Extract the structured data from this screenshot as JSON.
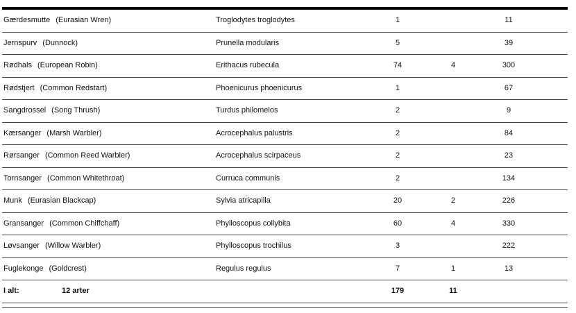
{
  "rows": [
    {
      "name": "Gærdesmutte",
      "english": "(Eurasian Wren)",
      "latin": "Troglodytes troglodytes",
      "n1": "1",
      "n2": "",
      "n3": "11"
    },
    {
      "name": "Jernspurv",
      "english": "(Dunnock)",
      "latin": "Prunella modularis",
      "n1": "5",
      "n2": "",
      "n3": "39"
    },
    {
      "name": "Rødhals",
      "english": "(European Robin)",
      "latin": "Erithacus rubecula",
      "n1": "74",
      "n2": "4",
      "n3": "300"
    },
    {
      "name": "Rødstjert",
      "english": "(Common Redstart)",
      "latin": "Phoenicurus phoenicurus",
      "n1": "1",
      "n2": "",
      "n3": "67"
    },
    {
      "name": "Sangdrossel",
      "english": "(Song Thrush)",
      "latin": "Turdus philomelos",
      "n1": "2",
      "n2": "",
      "n3": "9"
    },
    {
      "name": "Kærsanger",
      "english": "(Marsh Warbler)",
      "latin": "Acrocephalus palustris",
      "n1": "2",
      "n2": "",
      "n3": "84"
    },
    {
      "name": "Rørsanger",
      "english": "(Common Reed Warbler)",
      "latin": "Acrocephalus scirpaceus",
      "n1": "2",
      "n2": "",
      "n3": "23"
    },
    {
      "name": "Tornsanger",
      "english": "(Common Whitethroat)",
      "latin": "Curruca communis",
      "n1": "2",
      "n2": "",
      "n3": "134"
    },
    {
      "name": "Munk",
      "english": "(Eurasian Blackcap)",
      "latin": "Sylvia atricapilla",
      "n1": "20",
      "n2": "2",
      "n3": "226"
    },
    {
      "name": "Gransanger",
      "english": "(Common Chiffchaff)",
      "latin": "Phylloscopus collybita",
      "n1": "60",
      "n2": "4",
      "n3": "330"
    },
    {
      "name": "Løvsanger",
      "english": "(Willow Warbler)",
      "latin": "Phylloscopus trochilus",
      "n1": "3",
      "n2": "",
      "n3": "222"
    },
    {
      "name": "Fuglekonge",
      "english": "(Goldcrest)",
      "latin": "Regulus regulus",
      "n1": "7",
      "n2": "1",
      "n3": "13"
    }
  ],
  "total": {
    "label": "I alt:",
    "species": "12 arter",
    "n1": "179",
    "n2": "11",
    "n3": ""
  }
}
